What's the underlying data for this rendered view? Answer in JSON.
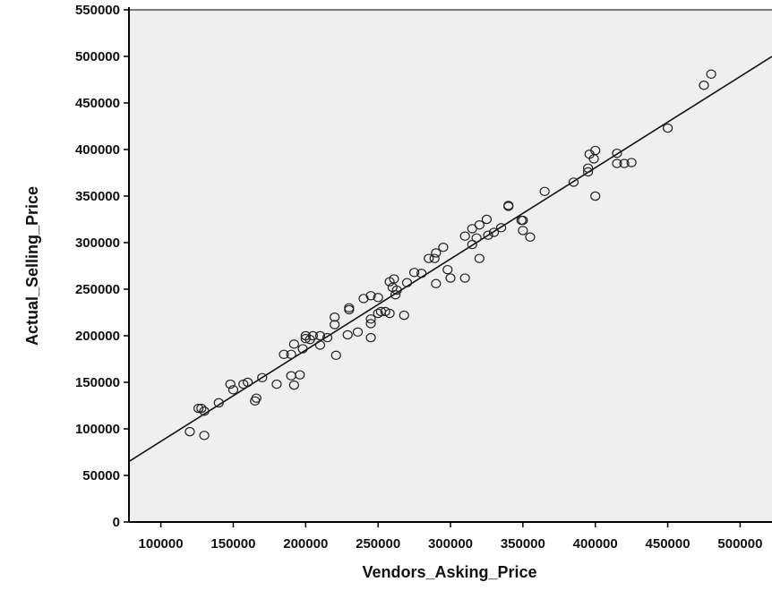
{
  "chart_data": {
    "type": "scatter",
    "title": "",
    "xlabel": "Vendors_Asking_Price",
    "ylabel": "Actual_Selling_Price",
    "xlim": [
      78000,
      522000
    ],
    "ylim": [
      0,
      550000
    ],
    "x_ticks": [
      100000,
      150000,
      200000,
      250000,
      300000,
      350000,
      400000,
      450000,
      500000
    ],
    "y_ticks": [
      0,
      50000,
      100000,
      150000,
      200000,
      250000,
      300000,
      350000,
      400000,
      450000,
      500000,
      550000
    ],
    "x_tick_labels": [
      "100000",
      "150000",
      "200000",
      "250000",
      "300000",
      "350000",
      "400000",
      "450000",
      "500000"
    ],
    "y_tick_labels": [
      "0",
      "50000",
      "100000",
      "150000",
      "200000",
      "250000",
      "300000",
      "350000",
      "400000",
      "450000",
      "500000",
      "550000"
    ],
    "grid": false,
    "plot_background": "#efefef",
    "marker_color": "#222222",
    "fit_line": {
      "color": "#111111",
      "x": [
        78000,
        522000
      ],
      "y": [
        65000,
        500000
      ]
    },
    "points": [
      [
        120000,
        97000
      ],
      [
        126000,
        122000
      ],
      [
        128000,
        122000
      ],
      [
        130000,
        119000
      ],
      [
        130000,
        93000
      ],
      [
        140000,
        128000
      ],
      [
        148000,
        148000
      ],
      [
        150000,
        142000
      ],
      [
        157000,
        148000
      ],
      [
        160000,
        150000
      ],
      [
        165000,
        130000
      ],
      [
        166000,
        133000
      ],
      [
        170000,
        155000
      ],
      [
        180000,
        148000
      ],
      [
        185000,
        180000
      ],
      [
        190000,
        157000
      ],
      [
        190000,
        180000
      ],
      [
        192000,
        147000
      ],
      [
        192000,
        191000
      ],
      [
        196000,
        158000
      ],
      [
        198000,
        186000
      ],
      [
        200000,
        200000
      ],
      [
        200000,
        197000
      ],
      [
        203000,
        196000
      ],
      [
        205000,
        200000
      ],
      [
        210000,
        190000
      ],
      [
        210000,
        200000
      ],
      [
        215000,
        198000
      ],
      [
        220000,
        212000
      ],
      [
        220000,
        220000
      ],
      [
        221000,
        179000
      ],
      [
        229000,
        201000
      ],
      [
        230000,
        228000
      ],
      [
        230000,
        230000
      ],
      [
        236000,
        204000
      ],
      [
        240000,
        240000
      ],
      [
        245000,
        243000
      ],
      [
        245000,
        213000
      ],
      [
        245000,
        218000
      ],
      [
        245000,
        198000
      ],
      [
        250000,
        241000
      ],
      [
        250000,
        224000
      ],
      [
        252000,
        226000
      ],
      [
        255000,
        226000
      ],
      [
        258000,
        224000
      ],
      [
        258000,
        258000
      ],
      [
        260000,
        252000
      ],
      [
        261000,
        261000
      ],
      [
        262000,
        244000
      ],
      [
        263000,
        249000
      ],
      [
        268000,
        222000
      ],
      [
        270000,
        257000
      ],
      [
        275000,
        268000
      ],
      [
        280000,
        267000
      ],
      [
        285000,
        283000
      ],
      [
        289000,
        283000
      ],
      [
        290000,
        289000
      ],
      [
        290000,
        256000
      ],
      [
        295000,
        295000
      ],
      [
        298000,
        271000
      ],
      [
        300000,
        262000
      ],
      [
        310000,
        262000
      ],
      [
        310000,
        307000
      ],
      [
        315000,
        298000
      ],
      [
        315000,
        315000
      ],
      [
        318000,
        305000
      ],
      [
        320000,
        283000
      ],
      [
        320000,
        319000
      ],
      [
        325000,
        325000
      ],
      [
        326000,
        308000
      ],
      [
        330000,
        311000
      ],
      [
        335000,
        316000
      ],
      [
        340000,
        340000
      ],
      [
        340000,
        339000
      ],
      [
        349000,
        324000
      ],
      [
        350000,
        313000
      ],
      [
        350000,
        324000
      ],
      [
        355000,
        306000
      ],
      [
        365000,
        355000
      ],
      [
        385000,
        365000
      ],
      [
        395000,
        380000
      ],
      [
        395000,
        376000
      ],
      [
        396000,
        395000
      ],
      [
        399000,
        390000
      ],
      [
        400000,
        399000
      ],
      [
        400000,
        350000
      ],
      [
        415000,
        396000
      ],
      [
        415000,
        385000
      ],
      [
        420000,
        385000
      ],
      [
        425000,
        386000
      ],
      [
        450000,
        423000
      ],
      [
        475000,
        469000
      ],
      [
        480000,
        481000
      ]
    ]
  }
}
